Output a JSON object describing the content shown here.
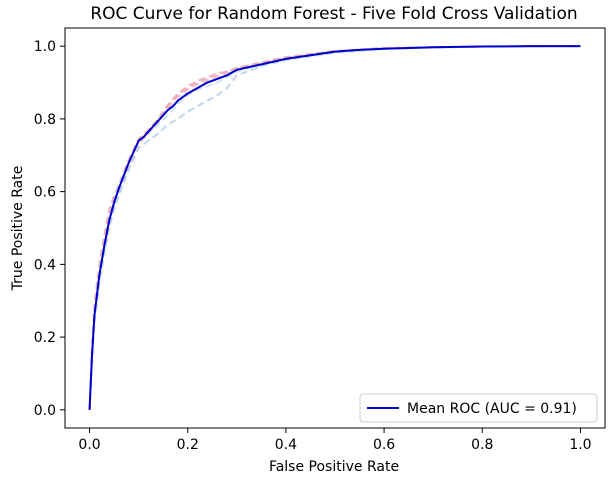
{
  "chart_data": {
    "type": "line",
    "title": "ROC Curve for Random Forest - Five Fold Cross Validation",
    "xlabel": "False Positive Rate",
    "ylabel": "True Positive Rate",
    "xlim": [
      -0.05,
      1.05
    ],
    "ylim": [
      -0.05,
      1.05
    ],
    "xticks": [
      0.0,
      0.2,
      0.4,
      0.6,
      0.8,
      1.0
    ],
    "yticks": [
      0.0,
      0.2,
      0.4,
      0.6,
      0.8,
      1.0
    ],
    "grid": false,
    "legend_position": "lower-right",
    "series": [
      {
        "name": "Mean ROC (AUC = 0.91)",
        "color": "#0000cc",
        "style": "solid",
        "x": [
          0.0,
          0.005,
          0.01,
          0.02,
          0.03,
          0.04,
          0.05,
          0.06,
          0.07,
          0.08,
          0.09,
          0.1,
          0.11,
          0.12,
          0.13,
          0.14,
          0.15,
          0.16,
          0.17,
          0.18,
          0.19,
          0.2,
          0.22,
          0.24,
          0.26,
          0.28,
          0.3,
          0.35,
          0.4,
          0.45,
          0.5,
          0.55,
          0.6,
          0.7,
          0.8,
          0.9,
          1.0
        ],
        "y": [
          0.0,
          0.15,
          0.26,
          0.37,
          0.45,
          0.52,
          0.57,
          0.61,
          0.645,
          0.68,
          0.71,
          0.74,
          0.75,
          0.765,
          0.78,
          0.795,
          0.81,
          0.825,
          0.835,
          0.85,
          0.86,
          0.87,
          0.885,
          0.9,
          0.91,
          0.92,
          0.935,
          0.95,
          0.965,
          0.975,
          0.985,
          0.99,
          0.993,
          0.997,
          0.999,
          1.0,
          1.0
        ]
      },
      {
        "color": "#e8a0a8",
        "style": "dashed",
        "x": [
          0.0,
          0.005,
          0.01,
          0.02,
          0.03,
          0.04,
          0.05,
          0.06,
          0.07,
          0.08,
          0.1,
          0.12,
          0.14,
          0.16,
          0.18,
          0.2,
          0.22,
          0.24,
          0.26,
          0.28,
          0.3,
          0.35,
          0.4,
          0.5,
          0.6,
          0.8,
          1.0
        ],
        "y": [
          0.0,
          0.18,
          0.29,
          0.4,
          0.48,
          0.55,
          0.59,
          0.62,
          0.655,
          0.69,
          0.745,
          0.77,
          0.8,
          0.84,
          0.87,
          0.89,
          0.905,
          0.915,
          0.925,
          0.93,
          0.94,
          0.955,
          0.97,
          0.987,
          0.995,
          0.999,
          1.0
        ]
      },
      {
        "color": "#f0b8c0",
        "style": "dashed",
        "x": [
          0.0,
          0.005,
          0.01,
          0.02,
          0.03,
          0.04,
          0.05,
          0.06,
          0.08,
          0.1,
          0.12,
          0.14,
          0.16,
          0.18,
          0.2,
          0.22,
          0.24,
          0.26,
          0.28,
          0.3,
          0.35,
          0.4,
          0.5,
          0.6,
          0.8,
          1.0
        ],
        "y": [
          0.0,
          0.14,
          0.25,
          0.36,
          0.44,
          0.51,
          0.56,
          0.6,
          0.67,
          0.73,
          0.76,
          0.79,
          0.83,
          0.86,
          0.88,
          0.895,
          0.905,
          0.915,
          0.925,
          0.935,
          0.95,
          0.965,
          0.985,
          0.994,
          0.999,
          1.0
        ]
      },
      {
        "color": "#a8c8e8",
        "style": "dashed",
        "x": [
          0.0,
          0.005,
          0.01,
          0.02,
          0.03,
          0.04,
          0.05,
          0.06,
          0.08,
          0.1,
          0.12,
          0.14,
          0.16,
          0.18,
          0.2,
          0.22,
          0.24,
          0.26,
          0.28,
          0.3,
          0.35,
          0.4,
          0.5,
          0.6,
          0.8,
          1.0
        ],
        "y": [
          0.0,
          0.13,
          0.24,
          0.35,
          0.43,
          0.5,
          0.55,
          0.59,
          0.66,
          0.72,
          0.74,
          0.76,
          0.785,
          0.8,
          0.82,
          0.835,
          0.85,
          0.865,
          0.885,
          0.92,
          0.945,
          0.962,
          0.982,
          0.993,
          0.999,
          1.0
        ]
      },
      {
        "color": "#c0d8ee",
        "style": "dashed",
        "x": [
          0.0,
          0.005,
          0.01,
          0.02,
          0.03,
          0.04,
          0.05,
          0.06,
          0.08,
          0.1,
          0.12,
          0.14,
          0.16,
          0.18,
          0.2,
          0.22,
          0.24,
          0.26,
          0.28,
          0.3,
          0.35,
          0.4,
          0.5,
          0.6,
          0.8,
          1.0
        ],
        "y": [
          0.0,
          0.16,
          0.27,
          0.38,
          0.46,
          0.53,
          0.58,
          0.62,
          0.68,
          0.74,
          0.76,
          0.785,
          0.81,
          0.84,
          0.865,
          0.88,
          0.89,
          0.9,
          0.915,
          0.93,
          0.95,
          0.965,
          0.984,
          0.994,
          0.999,
          1.0
        ]
      },
      {
        "color": "#e6a4b0",
        "style": "dashed",
        "x": [
          0.0,
          0.005,
          0.01,
          0.02,
          0.03,
          0.04,
          0.05,
          0.06,
          0.08,
          0.1,
          0.12,
          0.14,
          0.16,
          0.18,
          0.2,
          0.22,
          0.24,
          0.26,
          0.28,
          0.3,
          0.35,
          0.4,
          0.5,
          0.6,
          0.8,
          1.0
        ],
        "y": [
          0.0,
          0.15,
          0.27,
          0.38,
          0.46,
          0.53,
          0.58,
          0.61,
          0.68,
          0.74,
          0.77,
          0.8,
          0.835,
          0.865,
          0.885,
          0.9,
          0.91,
          0.92,
          0.93,
          0.94,
          0.955,
          0.968,
          0.986,
          0.995,
          0.999,
          1.0
        ]
      }
    ]
  }
}
